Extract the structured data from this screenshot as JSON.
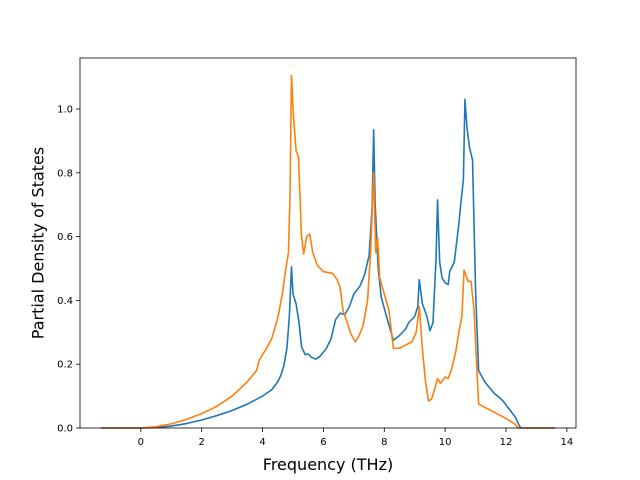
{
  "chart_data": {
    "type": "line",
    "title": "",
    "xlabel": "Frequency (THz)",
    "ylabel": "Partial Density of States",
    "xlim": [
      -2.0,
      14.3
    ],
    "ylim": [
      0.0,
      1.16
    ],
    "xticks": [
      0,
      2,
      4,
      6,
      8,
      10,
      12,
      14
    ],
    "xtick_labels": [
      "0",
      "2",
      "4",
      "6",
      "8",
      "10",
      "12",
      "14"
    ],
    "yticks": [
      0.0,
      0.2,
      0.4,
      0.6,
      0.8,
      1.0
    ],
    "ytick_labels": [
      "0.0",
      "0.2",
      "0.4",
      "0.6",
      "0.8",
      "1.0"
    ],
    "grid": false,
    "legend": "none",
    "series": [
      {
        "color": "#1f77b4",
        "points": [
          [
            -1.3,
            0.0
          ],
          [
            0.0,
            0.0
          ],
          [
            0.5,
            0.001
          ],
          [
            1.0,
            0.006
          ],
          [
            1.5,
            0.014
          ],
          [
            2.0,
            0.025
          ],
          [
            2.5,
            0.039
          ],
          [
            3.0,
            0.055
          ],
          [
            3.5,
            0.075
          ],
          [
            4.0,
            0.1
          ],
          [
            4.3,
            0.12
          ],
          [
            4.5,
            0.145
          ],
          [
            4.6,
            0.165
          ],
          [
            4.7,
            0.195
          ],
          [
            4.8,
            0.25
          ],
          [
            4.88,
            0.35
          ],
          [
            4.95,
            0.505
          ],
          [
            5.0,
            0.42
          ],
          [
            5.1,
            0.39
          ],
          [
            5.2,
            0.33
          ],
          [
            5.28,
            0.255
          ],
          [
            5.4,
            0.23
          ],
          [
            5.5,
            0.232
          ],
          [
            5.6,
            0.222
          ],
          [
            5.75,
            0.216
          ],
          [
            5.9,
            0.226
          ],
          [
            6.1,
            0.25
          ],
          [
            6.25,
            0.28
          ],
          [
            6.4,
            0.34
          ],
          [
            6.55,
            0.36
          ],
          [
            6.7,
            0.355
          ],
          [
            6.85,
            0.38
          ],
          [
            7.0,
            0.42
          ],
          [
            7.2,
            0.445
          ],
          [
            7.35,
            0.48
          ],
          [
            7.5,
            0.54
          ],
          [
            7.6,
            0.69
          ],
          [
            7.65,
            0.935
          ],
          [
            7.7,
            0.7
          ],
          [
            7.8,
            0.5
          ],
          [
            7.9,
            0.41
          ],
          [
            8.1,
            0.34
          ],
          [
            8.3,
            0.275
          ],
          [
            8.5,
            0.29
          ],
          [
            8.7,
            0.31
          ],
          [
            8.8,
            0.33
          ],
          [
            9.0,
            0.35
          ],
          [
            9.1,
            0.38
          ],
          [
            9.15,
            0.465
          ],
          [
            9.25,
            0.39
          ],
          [
            9.4,
            0.35
          ],
          [
            9.5,
            0.305
          ],
          [
            9.6,
            0.33
          ],
          [
            9.7,
            0.53
          ],
          [
            9.75,
            0.715
          ],
          [
            9.82,
            0.52
          ],
          [
            9.9,
            0.47
          ],
          [
            10.0,
            0.455
          ],
          [
            10.1,
            0.45
          ],
          [
            10.15,
            0.49
          ],
          [
            10.3,
            0.52
          ],
          [
            10.45,
            0.64
          ],
          [
            10.5,
            0.69
          ],
          [
            10.6,
            0.78
          ],
          [
            10.65,
            1.03
          ],
          [
            10.72,
            0.94
          ],
          [
            10.8,
            0.88
          ],
          [
            10.9,
            0.84
          ],
          [
            11.0,
            0.43
          ],
          [
            11.1,
            0.18
          ],
          [
            11.3,
            0.145
          ],
          [
            11.6,
            0.11
          ],
          [
            11.9,
            0.085
          ],
          [
            12.1,
            0.06
          ],
          [
            12.3,
            0.035
          ],
          [
            12.45,
            0.005
          ],
          [
            12.5,
            0.0
          ],
          [
            13.6,
            0.0
          ]
        ]
      },
      {
        "color": "#ff7f0e",
        "points": [
          [
            -1.3,
            0.0
          ],
          [
            0.0,
            0.0
          ],
          [
            0.5,
            0.004
          ],
          [
            1.0,
            0.013
          ],
          [
            1.5,
            0.027
          ],
          [
            2.0,
            0.045
          ],
          [
            2.5,
            0.068
          ],
          [
            3.0,
            0.1
          ],
          [
            3.5,
            0.145
          ],
          [
            3.8,
            0.18
          ],
          [
            3.9,
            0.215
          ],
          [
            4.1,
            0.245
          ],
          [
            4.3,
            0.28
          ],
          [
            4.5,
            0.345
          ],
          [
            4.65,
            0.42
          ],
          [
            4.75,
            0.49
          ],
          [
            4.85,
            0.55
          ],
          [
            4.9,
            0.72
          ],
          [
            4.95,
            1.105
          ],
          [
            5.02,
            0.97
          ],
          [
            5.1,
            0.87
          ],
          [
            5.18,
            0.85
          ],
          [
            5.28,
            0.6
          ],
          [
            5.35,
            0.545
          ],
          [
            5.45,
            0.6
          ],
          [
            5.55,
            0.608
          ],
          [
            5.65,
            0.55
          ],
          [
            5.8,
            0.51
          ],
          [
            6.0,
            0.49
          ],
          [
            6.3,
            0.485
          ],
          [
            6.45,
            0.465
          ],
          [
            6.55,
            0.44
          ],
          [
            6.65,
            0.365
          ],
          [
            6.75,
            0.34
          ],
          [
            6.9,
            0.295
          ],
          [
            7.05,
            0.27
          ],
          [
            7.15,
            0.285
          ],
          [
            7.3,
            0.32
          ],
          [
            7.45,
            0.4
          ],
          [
            7.55,
            0.55
          ],
          [
            7.65,
            0.8
          ],
          [
            7.72,
            0.55
          ],
          [
            7.78,
            0.595
          ],
          [
            7.85,
            0.47
          ],
          [
            8.0,
            0.42
          ],
          [
            8.15,
            0.37
          ],
          [
            8.3,
            0.25
          ],
          [
            8.5,
            0.25
          ],
          [
            8.7,
            0.26
          ],
          [
            8.9,
            0.27
          ],
          [
            9.05,
            0.3
          ],
          [
            9.15,
            0.38
          ],
          [
            9.25,
            0.25
          ],
          [
            9.35,
            0.15
          ],
          [
            9.45,
            0.085
          ],
          [
            9.55,
            0.09
          ],
          [
            9.65,
            0.12
          ],
          [
            9.75,
            0.155
          ],
          [
            9.85,
            0.14
          ],
          [
            10.0,
            0.16
          ],
          [
            10.1,
            0.155
          ],
          [
            10.2,
            0.18
          ],
          [
            10.35,
            0.24
          ],
          [
            10.45,
            0.3
          ],
          [
            10.55,
            0.35
          ],
          [
            10.62,
            0.495
          ],
          [
            10.75,
            0.46
          ],
          [
            10.85,
            0.46
          ],
          [
            10.95,
            0.37
          ],
          [
            11.05,
            0.17
          ],
          [
            11.1,
            0.075
          ],
          [
            11.5,
            0.055
          ],
          [
            12.0,
            0.03
          ],
          [
            12.3,
            0.012
          ],
          [
            12.4,
            0.0
          ],
          [
            13.6,
            0.0
          ]
        ]
      }
    ]
  }
}
